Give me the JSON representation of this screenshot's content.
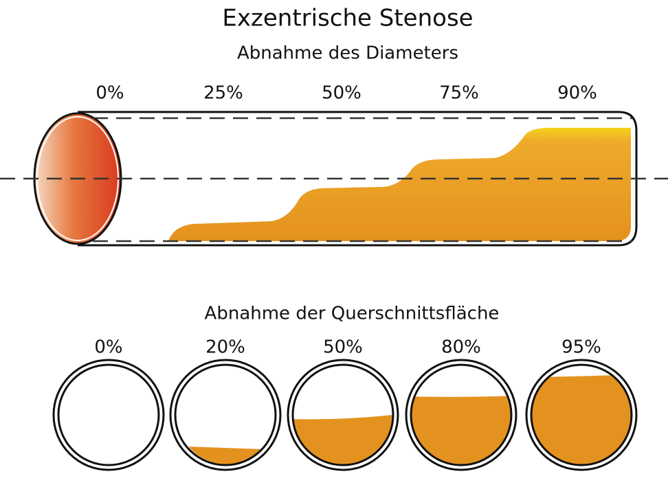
{
  "title": "Exzentrische Stenose",
  "diameter": {
    "title": "Abnahme des Diameters",
    "labels": [
      "0%",
      "25%",
      "50%",
      "75%",
      "90%"
    ]
  },
  "area": {
    "title": "Abnahme der Querschnittsfläche",
    "labels": [
      "0%",
      "20%",
      "50%",
      "80%",
      "95%"
    ]
  }
}
